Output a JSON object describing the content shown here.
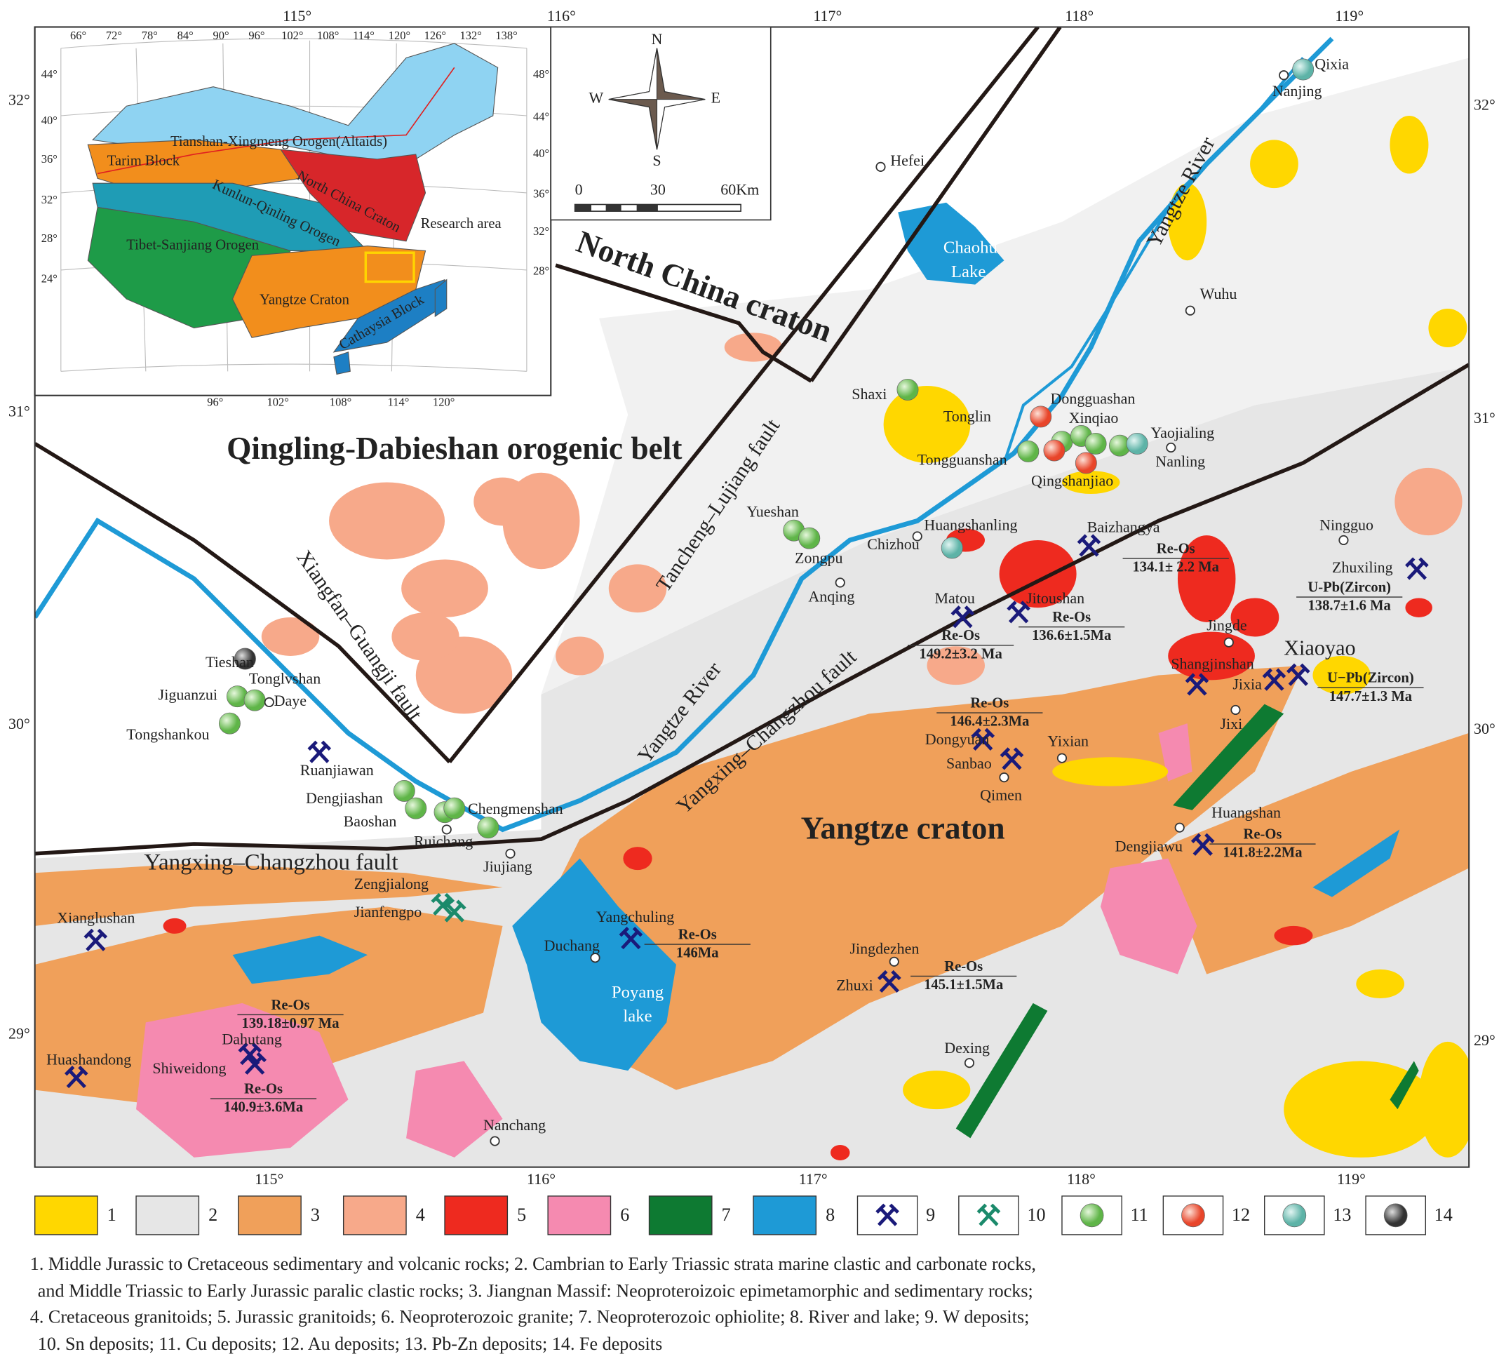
{
  "map": {
    "axes": {
      "top": [
        "115°",
        "116°",
        "117°",
        "118°",
        "119°"
      ],
      "bottom": [
        "115°",
        "116°",
        "117°",
        "118°",
        "119°"
      ],
      "left": [
        "32°",
        "31°",
        "30°",
        "29°"
      ],
      "right": [
        "32°",
        "31°",
        "30°",
        "29°"
      ]
    },
    "inset": {
      "longitudes_top": [
        "66°",
        "72°",
        "78°",
        "84°",
        "90°",
        "96°",
        "102°",
        "108°",
        "114°",
        "120°",
        "126°",
        "132°",
        "138°"
      ],
      "latitudes_left": [
        "44°",
        "40°",
        "36°",
        "32°",
        "28°",
        "24°"
      ],
      "latitudes_right": [
        "48°",
        "44°",
        "40°",
        "36°",
        "32°",
        "28°"
      ],
      "longitudes_bottom": [
        "96°",
        "102°",
        "108°",
        "114°",
        "120°"
      ],
      "regions": [
        "Tianshan-Xingmeng Orogen(Altaids)",
        "Tarim Block",
        "North China Craton",
        "Kunlun-Qinling Orogen",
        "Research area",
        "Tibet-Sanjiang Orogen",
        "Yangtze Craton",
        "Cathaysia Block"
      ]
    },
    "compass": {
      "north": "N",
      "south": "S",
      "west": "W",
      "east": "E"
    },
    "scale_bar": [
      "0",
      "30",
      "60Km"
    ],
    "features": [
      "North China craton",
      "Qingling-Dabieshan orogenic belt",
      "Tancheng–Lujiang fault",
      "Xiangfan–Guangji fault",
      "Yangtze River",
      "Yangtze River",
      "Yangxing–Changzhou fault",
      "Yangxing–Changzhou fault",
      "Yangtze craton"
    ],
    "lakes": [
      [
        "Chaohu",
        "Lake"
      ],
      [
        "Poyang",
        "lake"
      ]
    ],
    "places": [
      "Hefei",
      "Nanjing",
      "Qixia",
      "Wuhu",
      "Shaxi",
      "Tonglin",
      "Dongguashan",
      "Xinqiao",
      "Yaojialing",
      "Nanling",
      "Tongguanshan",
      "Qingshanjiao",
      "Yueshan",
      "Zongpu",
      "Anqing",
      "Huangshanling",
      "Chizhou",
      "Baizhangya",
      "Ningguo",
      "Zhuxiling",
      "Matou",
      "Jitoushan",
      "Jingde",
      "Shangjinshan",
      "Xiaoyao",
      "Jixia",
      "Jixi",
      "Dongyuan",
      "Yixian",
      "Sanbao",
      "Qimen",
      "Huangshan",
      "Dengjiawu",
      "Tieshan",
      "Tonglvshan",
      "Jiguanzui",
      "Daye",
      "Tongshankou",
      "Ruanjiawan",
      "Dengjiashan",
      "Baoshan",
      "Chengmenshan",
      "Ruichang",
      "Jiujiang",
      "Zengjialong",
      "Jianfengpo",
      "Xianglushan",
      "Yangchuling",
      "Duchang",
      "Jingdezhen",
      "Zhuxi",
      "Dahutang",
      "Shiweidong",
      "Huashandong",
      "Dexing",
      "Nanchang"
    ],
    "ages": [
      {
        "method": "Re-Os",
        "age": "134.1± 2.2 Ma"
      },
      {
        "method": "U-Pb(Zircon)",
        "age": "138.7±1.6 Ma"
      },
      {
        "method": "Re-Os",
        "age": "136.6±1.5Ma"
      },
      {
        "method": "Re-Os",
        "age": "149.2±3.2 Ma"
      },
      {
        "method": "U−Pb(Zircon)",
        "age": "147.7±1.3 Ma"
      },
      {
        "method": "Re-Os",
        "age": "146.4±2.3Ma"
      },
      {
        "method": "Re-Os",
        "age": "141.8±2.2Ma"
      },
      {
        "method": "Re-Os",
        "age": "146Ma"
      },
      {
        "method": "Re-Os",
        "age": "145.1±1.5Ma"
      },
      {
        "method": "Re-Os",
        "age": "139.18±0.97 Ma"
      },
      {
        "method": "Re-Os",
        "age": "140.9±3.6Ma"
      }
    ]
  },
  "legend": {
    "items": [
      "1",
      "2",
      "3",
      "4",
      "5",
      "6",
      "7",
      "8",
      "9",
      "10",
      "11",
      "12",
      "13",
      "14"
    ],
    "caption": [
      "1. Middle Jurassic to Cretaceous sedimentary and volcanic rocks; 2. Cambrian to Early Triassic strata marine clastic and carbonate rocks,",
      "and Middle Triassic to Early Jurassic paralic clastic rocks; 3. Jiangnan Massif: Neoproteroizoic epimetamorphic and sedimentary rocks;",
      "4. Cretaceous granitoids; 5. Jurassic granitoids; 6. Neoproterozoic granite; 7. Neoproterozoic ophiolite; 8. River and lake; 9. W deposits;",
      "10. Sn deposits; 11. Cu deposits; 12. Au deposits; 13. Pb-Zn deposits; 14. Fe deposits"
    ]
  }
}
